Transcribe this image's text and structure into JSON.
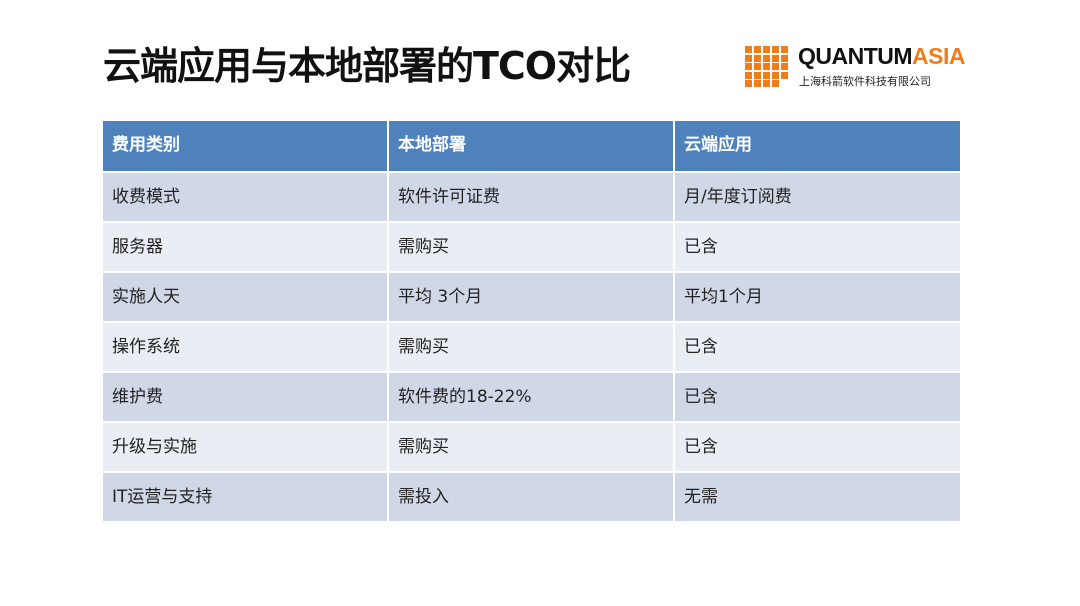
{
  "slide": {
    "title": "云端应用与本地部署的TCO对比"
  },
  "logo": {
    "word_main": "QUANTUM",
    "word_accent": "ASIA",
    "subtitle": "上海科箭软件科技有限公司",
    "accent_color": "#f07d1a"
  },
  "table": {
    "header_color": "#4f81bd",
    "headers": [
      "费用类别",
      "本地部署",
      "云端应用"
    ],
    "rows": [
      [
        "收费模式",
        "软件许可证费",
        "月/年度订阅费"
      ],
      [
        "服务器",
        "需购买",
        "已含"
      ],
      [
        "实施人天",
        "平均 3个月",
        "平均1个月"
      ],
      [
        "操作系统",
        "需购买",
        "已含"
      ],
      [
        "维护费",
        "软件费的18-22%",
        "已含"
      ],
      [
        "升级与实施",
        "需购买",
        "已含"
      ],
      [
        "IT运营与支持",
        "需投入",
        "无需"
      ]
    ]
  }
}
